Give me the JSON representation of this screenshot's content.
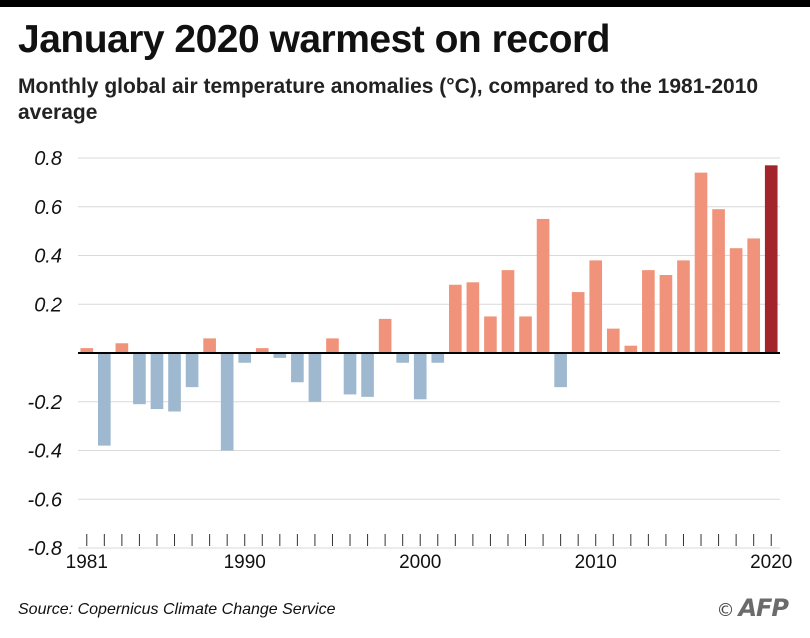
{
  "header": {
    "title": "January 2020 warmest on record",
    "subtitle": "Monthly global air temperature anomalies (°C), compared to the 1981-2010 average"
  },
  "footer": {
    "source": "Source: Copernicus Climate Change Service",
    "copyright_symbol": "©",
    "logo_text": "AFP"
  },
  "chart_data": {
    "type": "bar",
    "title": "January 2020 warmest on record",
    "subtitle": "Monthly global air temperature anomalies (°C), compared to the 1981-2010 average",
    "xlabel": "",
    "ylabel": "",
    "x": [
      1981,
      1982,
      1983,
      1984,
      1985,
      1986,
      1987,
      1988,
      1989,
      1990,
      1991,
      1992,
      1993,
      1994,
      1995,
      1996,
      1997,
      1998,
      1999,
      2000,
      2001,
      2002,
      2003,
      2004,
      2005,
      2006,
      2007,
      2008,
      2009,
      2010,
      2011,
      2012,
      2013,
      2014,
      2015,
      2016,
      2017,
      2018,
      2019,
      2020
    ],
    "values": [
      0.02,
      -0.38,
      0.04,
      -0.21,
      -0.23,
      -0.24,
      -0.14,
      0.06,
      -0.4,
      -0.04,
      0.02,
      -0.02,
      -0.12,
      -0.2,
      0.06,
      -0.17,
      -0.18,
      0.14,
      -0.04,
      -0.19,
      -0.04,
      0.28,
      0.29,
      0.15,
      0.34,
      0.15,
      0.55,
      -0.14,
      0.25,
      0.38,
      0.1,
      0.03,
      0.34,
      0.32,
      0.38,
      0.74,
      0.59,
      0.43,
      0.47,
      0.77
    ],
    "x_tick_labels": [
      "1981",
      "1990",
      "2000",
      "2010",
      "2020"
    ],
    "y_tick_labels": [
      "0.8",
      "0.6",
      "0.4",
      "0.2",
      "-0.2",
      "-0.4",
      "-0.6",
      "-0.8"
    ],
    "y_ticks": [
      0.8,
      0.6,
      0.4,
      0.2,
      -0.2,
      -0.4,
      -0.6,
      -0.8
    ],
    "ylim": [
      -0.8,
      0.8
    ],
    "grid": true,
    "colors": {
      "negative": "#9db8cf",
      "positive": "#f0937a",
      "highlight": "#a3252c",
      "gridline": "#d9d9d9",
      "zero_line": "#000000"
    },
    "highlight_x": 2020
  }
}
